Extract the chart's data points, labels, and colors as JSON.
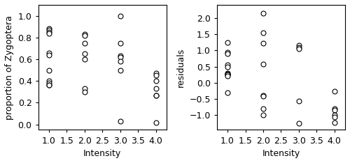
{
  "left_x": [
    1.0,
    1.0,
    1.0,
    1.0,
    1.0,
    1.0,
    1.0,
    1.0,
    1.0,
    1.0,
    1.0,
    2.0,
    2.0,
    2.0,
    2.0,
    2.0,
    2.0,
    2.0,
    3.0,
    3.0,
    3.0,
    3.0,
    3.0,
    3.0,
    3.0,
    4.0,
    4.0,
    4.0,
    4.0,
    4.0,
    4.0,
    4.0
  ],
  "left_y": [
    0.88,
    0.87,
    0.85,
    0.84,
    0.66,
    0.64,
    0.5,
    0.4,
    0.38,
    0.36,
    0.36,
    0.83,
    0.82,
    0.75,
    0.65,
    0.6,
    0.33,
    0.3,
    1.0,
    0.75,
    0.63,
    0.62,
    0.58,
    0.5,
    0.03,
    0.47,
    0.45,
    0.4,
    0.33,
    0.27,
    0.27,
    0.02
  ],
  "right_x": [
    1.0,
    1.0,
    1.0,
    1.0,
    1.0,
    1.0,
    1.0,
    1.0,
    1.0,
    1.0,
    1.0,
    2.0,
    2.0,
    2.0,
    2.0,
    2.0,
    2.0,
    2.0,
    2.0,
    3.0,
    3.0,
    3.0,
    3.0,
    3.0,
    4.0,
    4.0,
    4.0,
    4.0,
    4.0,
    4.0
  ],
  "right_y": [
    1.25,
    0.95,
    0.9,
    0.55,
    0.5,
    0.3,
    0.28,
    0.26,
    0.25,
    0.22,
    -0.3,
    2.15,
    1.55,
    1.22,
    0.58,
    -0.38,
    -0.42,
    -0.8,
    -1.0,
    1.15,
    1.1,
    1.05,
    -0.55,
    -1.25,
    -0.25,
    -0.8,
    -0.85,
    -1.0,
    -1.05,
    -1.22
  ],
  "left_xlim": [
    0.7,
    4.3
  ],
  "left_ylim": [
    -0.05,
    1.1
  ],
  "right_xlim": [
    0.7,
    4.3
  ],
  "right_ylim": [
    -1.45,
    2.4
  ],
  "left_ylabel": "proportion of Zygoptera",
  "right_ylabel": "residuals",
  "xlabel": "Intensity",
  "xticks": [
    1.0,
    1.5,
    2.0,
    2.5,
    3.0,
    3.5,
    4.0
  ],
  "left_yticks": [
    0.0,
    0.2,
    0.4,
    0.6,
    0.8,
    1.0
  ],
  "right_yticks": [
    -1.0,
    -0.5,
    0.0,
    0.5,
    1.0,
    1.5,
    2.0
  ],
  "marker": "o",
  "marker_size": 5,
  "marker_facecolor": "white",
  "marker_edgecolor": "black",
  "marker_linewidth": 0.8,
  "bg_color": "white",
  "font_size": 9,
  "label_fontsize": 9
}
